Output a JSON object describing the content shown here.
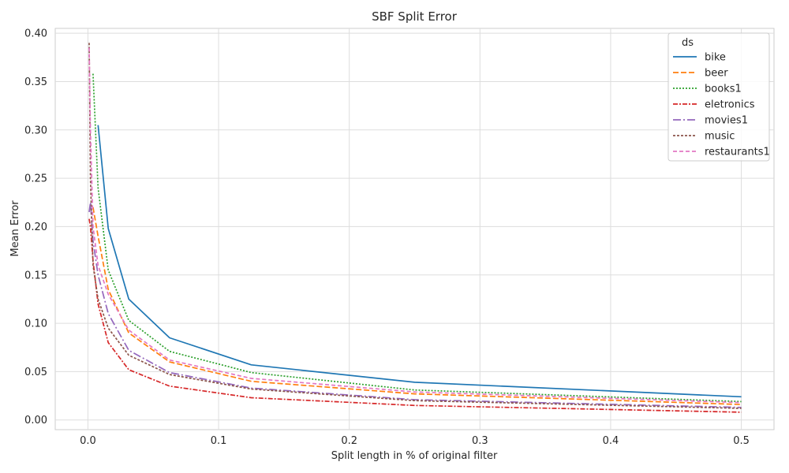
{
  "chart_data": {
    "type": "line",
    "title": "SBF Split Error",
    "xlabel": "Split length in % of original filter",
    "ylabel": "Mean Error",
    "xlim": [
      -0.025,
      0.525
    ],
    "ylim": [
      -0.01,
      0.405
    ],
    "xticks": [
      0.0,
      0.1,
      0.2,
      0.3,
      0.4,
      0.5
    ],
    "xtick_labels": [
      "0.0",
      "0.1",
      "0.2",
      "0.3",
      "0.4",
      "0.5"
    ],
    "yticks": [
      0.0,
      0.05,
      0.1,
      0.15,
      0.2,
      0.25,
      0.3,
      0.35,
      0.4
    ],
    "ytick_labels": [
      "0.00",
      "0.05",
      "0.10",
      "0.15",
      "0.20",
      "0.25",
      "0.30",
      "0.35",
      "0.40"
    ],
    "grid": true,
    "legend_title": "ds",
    "legend_position": "top-right",
    "series": [
      {
        "name": "bike",
        "color": "#1f77b4",
        "dash": "solid",
        "x": [
          0.0078,
          0.0156,
          0.03125,
          0.0625,
          0.125,
          0.25,
          0.5
        ],
        "y": [
          0.305,
          0.198,
          0.125,
          0.085,
          0.057,
          0.039,
          0.024
        ]
      },
      {
        "name": "beer",
        "color": "#ff7f0e",
        "dash": "dashed",
        "x": [
          0.0039,
          0.0078,
          0.0156,
          0.03125,
          0.0625,
          0.125,
          0.25,
          0.5
        ],
        "y": [
          0.22,
          0.19,
          0.135,
          0.09,
          0.06,
          0.04,
          0.027,
          0.016
        ]
      },
      {
        "name": "books1",
        "color": "#2ca02c",
        "dash": "dotted",
        "x": [
          0.0039,
          0.0078,
          0.0156,
          0.03125,
          0.0625,
          0.125,
          0.25,
          0.5
        ],
        "y": [
          0.358,
          0.24,
          0.155,
          0.103,
          0.071,
          0.049,
          0.031,
          0.019
        ]
      },
      {
        "name": "eletronics",
        "color": "#d62728",
        "dash": "dashdot",
        "x": [
          0.00098,
          0.00195,
          0.0039,
          0.0078,
          0.0156,
          0.03125,
          0.0625,
          0.125,
          0.25,
          0.5
        ],
        "y": [
          0.208,
          0.2,
          0.165,
          0.12,
          0.08,
          0.052,
          0.035,
          0.023,
          0.015,
          0.008
        ]
      },
      {
        "name": "movies1",
        "color": "#9467bd",
        "dash": "longdashdot",
        "x": [
          0.00098,
          0.00195,
          0.0039,
          0.0078,
          0.0156,
          0.03125,
          0.0625,
          0.125,
          0.25,
          0.5
        ],
        "y": [
          0.215,
          0.225,
          0.185,
          0.15,
          0.11,
          0.072,
          0.049,
          0.033,
          0.021,
          0.013
        ]
      },
      {
        "name": "music",
        "color": "#8c564b",
        "dash": "shortdash",
        "x": [
          0.00098,
          0.00195,
          0.0039,
          0.0078,
          0.0156,
          0.03125,
          0.0625,
          0.125,
          0.25,
          0.5
        ],
        "y": [
          0.39,
          0.25,
          0.16,
          0.125,
          0.095,
          0.067,
          0.047,
          0.032,
          0.02,
          0.012
        ]
      },
      {
        "name": "restaurants1",
        "color": "#e377c2",
        "dash": "dashed2",
        "x": [
          0.00098,
          0.00195,
          0.0039,
          0.0078,
          0.0156,
          0.03125,
          0.0625,
          0.125,
          0.25,
          0.5
        ],
        "y": [
          0.385,
          0.3,
          0.2,
          0.16,
          0.13,
          0.093,
          0.062,
          0.043,
          0.029,
          0.018
        ]
      }
    ]
  }
}
